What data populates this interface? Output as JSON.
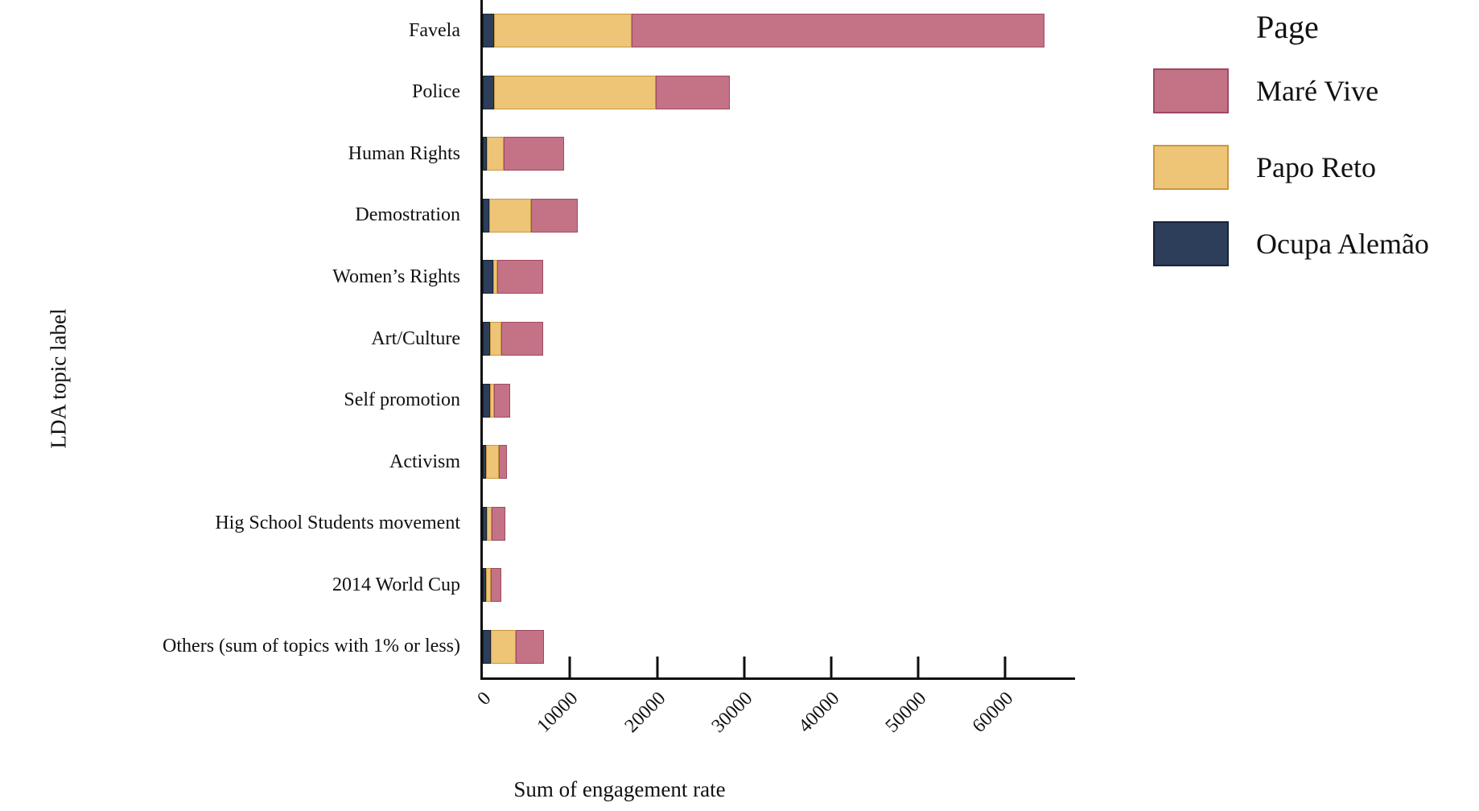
{
  "chart_data": {
    "type": "bar",
    "orientation": "horizontal",
    "stacked": true,
    "xlabel": "Sum of engagement rate",
    "ylabel": "LDA topic label",
    "xlim": [
      0,
      68000
    ],
    "xticks": [
      0,
      10000,
      20000,
      30000,
      40000,
      50000,
      60000
    ],
    "grid": false,
    "legend_title": "Page",
    "legend_position": "top-right",
    "legend_order": [
      "Maré Vive",
      "Papo Reto",
      "Ocupa Alemão"
    ],
    "categories": [
      "Favela",
      "Police",
      "Human Rights",
      "Demostration",
      "Women’s Rights",
      "Art/Culture",
      "Self promotion",
      "Activism",
      "Hig School Students movement",
      "2014 World Cup",
      "Others (sum of topics with 1% or less)"
    ],
    "series": [
      {
        "name": "Ocupa Alemão",
        "color": "#2c3e59",
        "border_color": "#16243a",
        "values": [
          1300,
          1300,
          500,
          700,
          1200,
          800,
          800,
          400,
          500,
          400,
          900
        ]
      },
      {
        "name": "Papo Reto",
        "color": "#eec477",
        "border_color": "#c9973f",
        "values": [
          15800,
          18600,
          1900,
          4800,
          500,
          1300,
          500,
          1500,
          500,
          500,
          2900
        ]
      },
      {
        "name": "Maré Vive",
        "color": "#c47386",
        "border_color": "#9e4a61",
        "values": [
          47400,
          8500,
          6900,
          5400,
          5200,
          4800,
          1800,
          900,
          1600,
          1200,
          3200
        ]
      }
    ],
    "totals": [
      64500,
      28400,
      9300,
      10900,
      6900,
      6900,
      3100,
      2800,
      2600,
      2100,
      7000
    ],
    "axis_color": "#0d0d0d"
  }
}
